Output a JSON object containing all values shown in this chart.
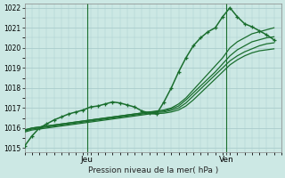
{
  "bg_color": "#cce8e4",
  "grid_color": "#aacccc",
  "line_color": "#1a6e2e",
  "xlabel": "Pression niveau de la mer( hPa )",
  "ylim": [
    1014.8,
    1022.2
  ],
  "xlim": [
    0,
    35
  ],
  "yticks": [
    1015,
    1016,
    1017,
    1018,
    1019,
    1020,
    1021,
    1022
  ],
  "ytick_top": 1022,
  "vline_jeu": 8.5,
  "vline_ven": 27.5,
  "vline_label_jeu": "Jeu",
  "vline_label_ven": "Ven",
  "x_main": [
    0,
    1,
    2,
    3,
    4,
    5,
    6,
    7,
    8,
    9,
    10,
    11,
    12,
    13,
    14,
    15,
    16,
    17,
    18,
    19,
    20,
    21,
    22,
    23,
    24,
    25,
    26,
    27,
    28,
    29,
    30,
    31,
    32,
    33,
    34
  ],
  "main_series": [
    1015.1,
    1015.6,
    1016.0,
    1016.2,
    1016.4,
    1016.55,
    1016.7,
    1016.8,
    1016.9,
    1017.05,
    1017.1,
    1017.2,
    1017.3,
    1017.25,
    1017.15,
    1017.05,
    1016.85,
    1016.75,
    1016.7,
    1017.3,
    1018.0,
    1018.8,
    1019.5,
    1020.1,
    1020.5,
    1020.8,
    1021.0,
    1021.55,
    1022.0,
    1021.55,
    1021.2,
    1021.05,
    1020.85,
    1020.65,
    1020.4
  ],
  "smooth_series": [
    [
      1015.9,
      1016.0,
      1016.05,
      1016.1,
      1016.15,
      1016.2,
      1016.25,
      1016.3,
      1016.35,
      1016.4,
      1016.45,
      1016.5,
      1016.55,
      1016.6,
      1016.65,
      1016.7,
      1016.75,
      1016.8,
      1016.85,
      1016.9,
      1017.0,
      1017.2,
      1017.5,
      1017.9,
      1018.3,
      1018.7,
      1019.1,
      1019.5,
      1020.0,
      1020.3,
      1020.5,
      1020.7,
      1020.8,
      1020.9,
      1021.0
    ],
    [
      1015.9,
      1016.0,
      1016.05,
      1016.1,
      1016.15,
      1016.2,
      1016.25,
      1016.3,
      1016.35,
      1016.4,
      1016.45,
      1016.5,
      1016.55,
      1016.6,
      1016.65,
      1016.7,
      1016.75,
      1016.8,
      1016.82,
      1016.85,
      1016.95,
      1017.1,
      1017.4,
      1017.75,
      1018.1,
      1018.45,
      1018.8,
      1019.2,
      1019.6,
      1019.9,
      1020.1,
      1020.3,
      1020.4,
      1020.5,
      1020.55
    ],
    [
      1015.85,
      1015.95,
      1016.0,
      1016.05,
      1016.1,
      1016.15,
      1016.2,
      1016.25,
      1016.3,
      1016.35,
      1016.4,
      1016.45,
      1016.5,
      1016.55,
      1016.6,
      1016.65,
      1016.7,
      1016.75,
      1016.78,
      1016.8,
      1016.88,
      1017.0,
      1017.25,
      1017.6,
      1017.95,
      1018.3,
      1018.65,
      1019.0,
      1019.35,
      1019.6,
      1019.8,
      1019.95,
      1020.1,
      1020.2,
      1020.25
    ],
    [
      1015.8,
      1015.9,
      1015.95,
      1016.0,
      1016.05,
      1016.1,
      1016.15,
      1016.2,
      1016.25,
      1016.3,
      1016.35,
      1016.4,
      1016.45,
      1016.5,
      1016.55,
      1016.6,
      1016.65,
      1016.7,
      1016.72,
      1016.74,
      1016.8,
      1016.9,
      1017.1,
      1017.4,
      1017.75,
      1018.1,
      1018.45,
      1018.8,
      1019.15,
      1019.4,
      1019.6,
      1019.75,
      1019.85,
      1019.9,
      1019.95
    ]
  ],
  "marker": "+",
  "marker_size": 3.5,
  "marker_lw": 0.9,
  "linewidth_main": 1.1,
  "linewidth_smooth": 0.9
}
